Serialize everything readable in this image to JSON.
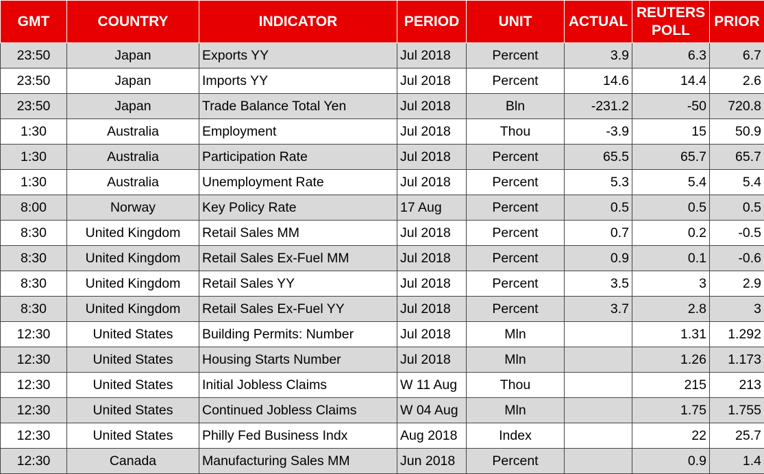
{
  "table": {
    "header": [
      "GMT",
      "COUNTRY",
      "INDICATOR",
      "PERIOD",
      "UNIT",
      "ACTUAL",
      "REUTERS POLL",
      "PRIOR"
    ],
    "rows": [
      [
        "23:50",
        "Japan",
        "Exports YY",
        "Jul 2018",
        "Percent",
        3.9,
        6.3,
        6.7
      ],
      [
        "23:50",
        "Japan",
        "Imports YY",
        "Jul 2018",
        "Percent",
        14.6,
        14.4,
        2.6
      ],
      [
        "23:50",
        "Japan",
        "Trade Balance Total Yen",
        "Jul 2018",
        "Bln",
        -231.2,
        -50,
        720.8
      ],
      [
        "1:30",
        "Australia",
        "Employment",
        "Jul 2018",
        "Thou",
        -3.9,
        15,
        50.9
      ],
      [
        "1:30",
        "Australia",
        "Participation Rate",
        "Jul 2018",
        "Percent",
        65.5,
        65.7,
        65.7
      ],
      [
        "1:30",
        "Australia",
        "Unemployment Rate",
        "Jul 2018",
        "Percent",
        5.3,
        5.4,
        5.4
      ],
      [
        "8:00",
        "Norway",
        "Key Policy Rate",
        "17 Aug",
        "Percent",
        0.5,
        0.5,
        0.5
      ],
      [
        "8:30",
        "United Kingdom",
        "Retail Sales MM",
        "Jul 2018",
        "Percent",
        0.7,
        0.2,
        -0.5
      ],
      [
        "8:30",
        "United Kingdom",
        "Retail Sales Ex-Fuel MM",
        "Jul 2018",
        "Percent",
        0.9,
        0.1,
        -0.6
      ],
      [
        "8:30",
        "United Kingdom",
        "Retail Sales YY",
        "Jul 2018",
        "Percent",
        3.5,
        3,
        2.9
      ],
      [
        "8:30",
        "United Kingdom",
        "Retail Sales Ex-Fuel YY",
        "Jul 2018",
        "Percent",
        3.7,
        2.8,
        3
      ],
      [
        "12:30",
        "United States",
        "Building Permits: Number",
        "Jul 2018",
        "Mln",
        null,
        1.31,
        1.292
      ],
      [
        "12:30",
        "United States",
        "Housing Starts Number",
        "Jul 2018",
        "Mln",
        null,
        1.26,
        1.173
      ],
      [
        "12:30",
        "United States",
        "Initial Jobless Claims",
        "W 11 Aug",
        "Thou",
        null,
        215,
        213
      ],
      [
        "12:30",
        "United States",
        "Continued Jobless Claims",
        "W 04 Aug",
        "Mln",
        null,
        1.75,
        1.755
      ],
      [
        "12:30",
        "United States",
        "Philly Fed Business Indx",
        "Aug 2018",
        "Index",
        null,
        22,
        25.7
      ],
      [
        "12:30",
        "Canada",
        "Manufacturing Sales MM",
        "Jun 2018",
        "Percent",
        null,
        0.9,
        1.4
      ]
    ]
  }
}
